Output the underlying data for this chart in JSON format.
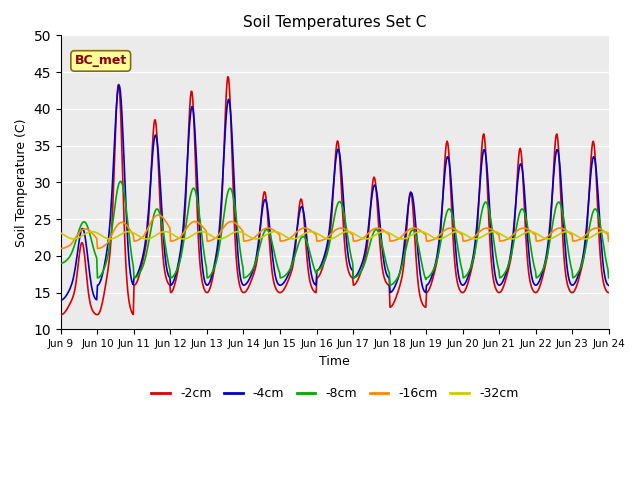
{
  "title": "Soil Temperatures Set C",
  "xlabel": "Time",
  "ylabel": "Soil Temperature (C)",
  "ylim": [
    10,
    50
  ],
  "yticks": [
    10,
    15,
    20,
    25,
    30,
    35,
    40,
    45,
    50
  ],
  "annotation": "BC_met",
  "colors": {
    "-2cm": "#dd0000",
    "-4cm": "#0000cc",
    "-8cm": "#00aa00",
    "-16cm": "#ff8800",
    "-32cm": "#cccc00"
  },
  "x_tick_labels": [
    "Jun 9",
    "Jun 10",
    "Jun 11",
    "Jun 12",
    "Jun 13",
    "Jun 14",
    "Jun 15",
    "Jun 16",
    "Jun 17",
    "Jun 18",
    "Jun 19",
    "Jun 20",
    "Jun 21",
    "Jun 22",
    "Jun 23",
    "Jun 24"
  ],
  "background_color": "#ebebeb",
  "linewidth": 1.2,
  "n_days": 15,
  "pts_per_day": 48
}
